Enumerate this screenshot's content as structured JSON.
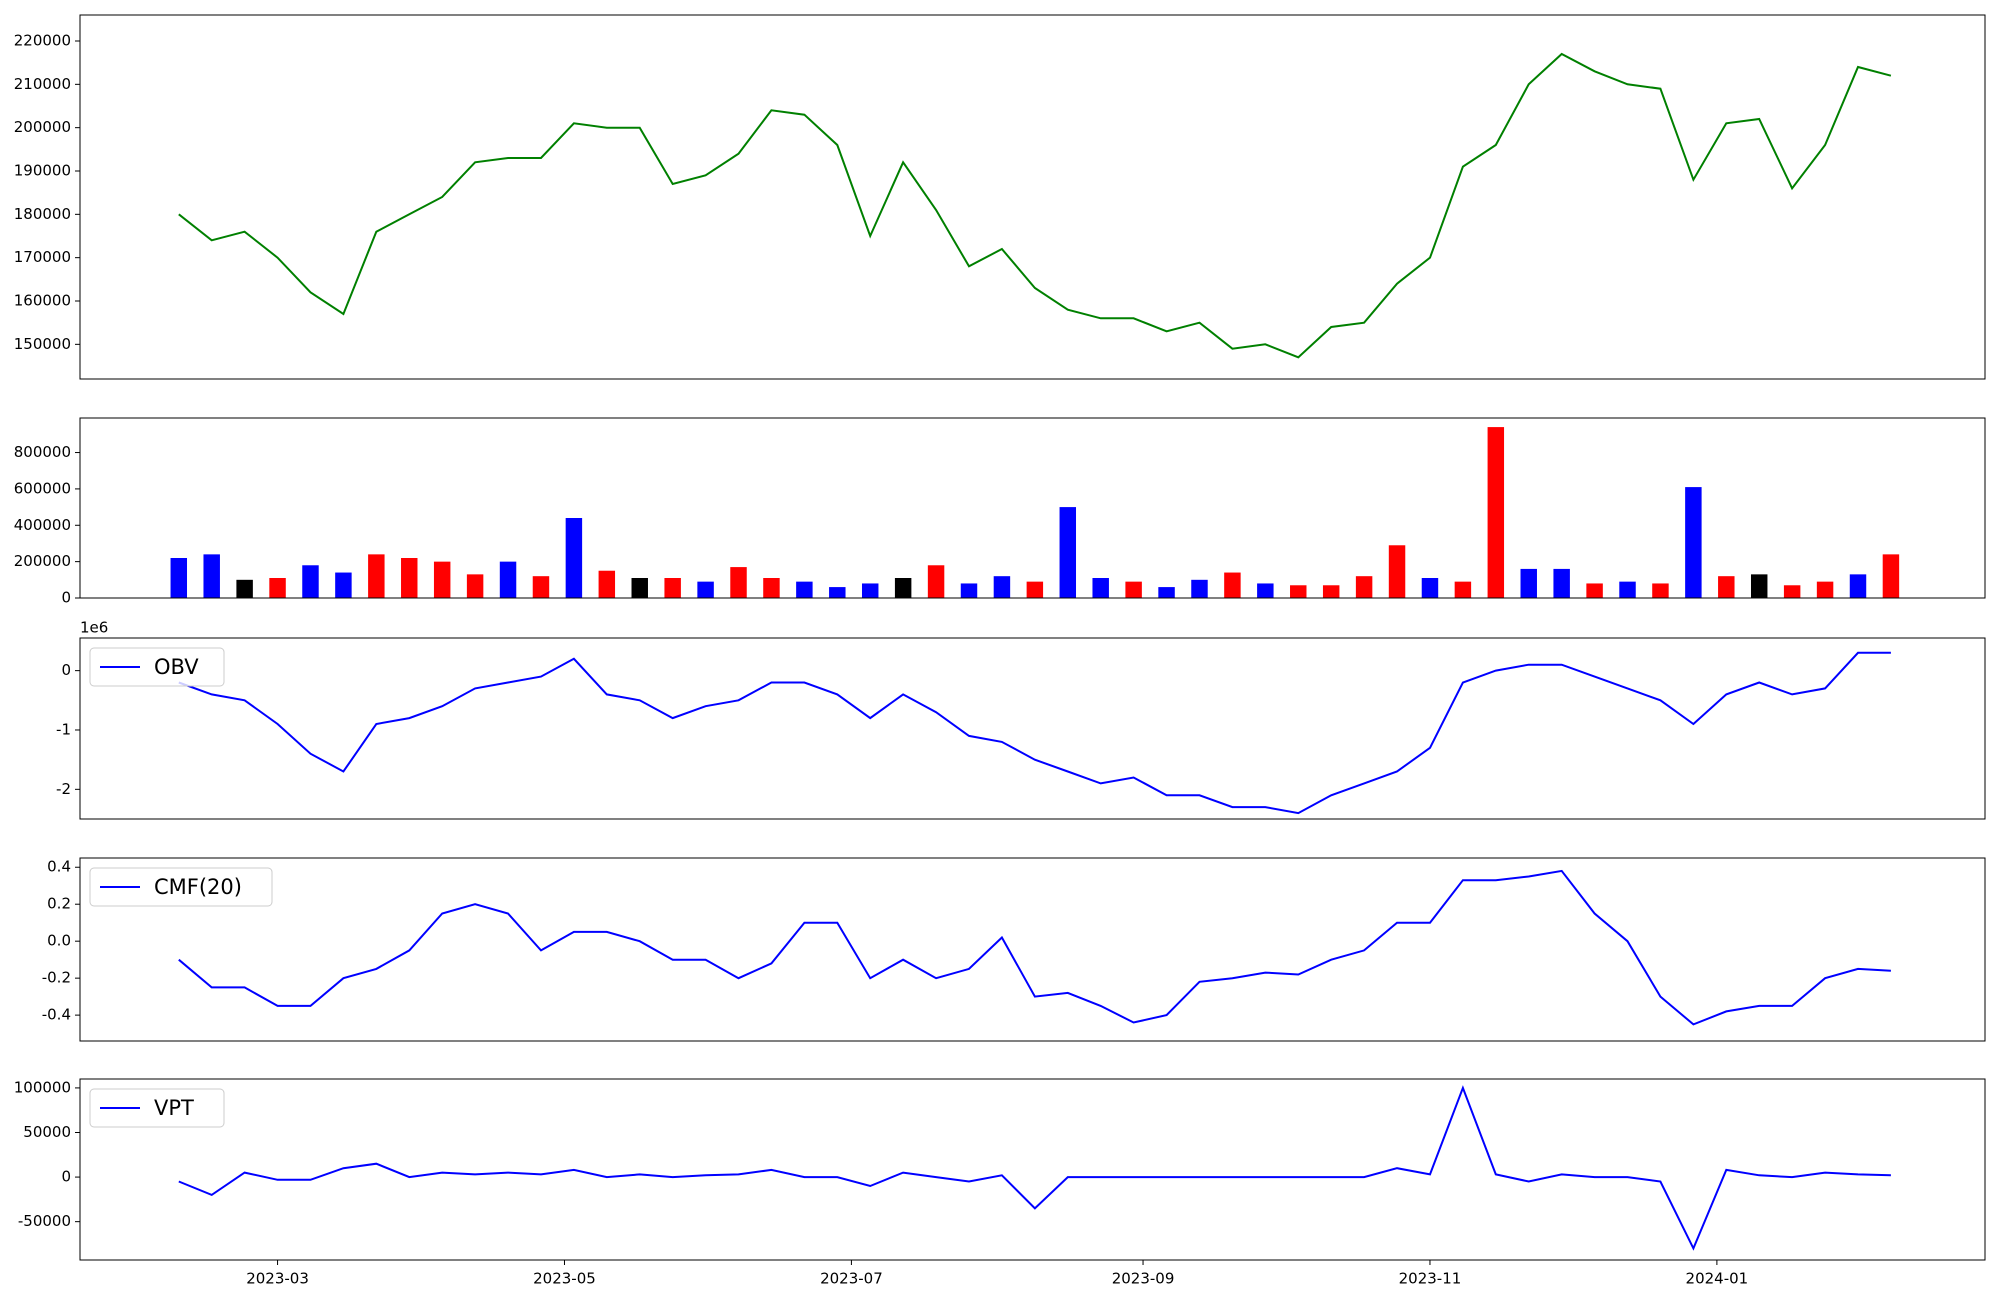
{
  "chart_data": [
    {
      "type": "line",
      "color": "#008000",
      "x": [
        "2023-02-08",
        "2023-02-15",
        "2023-02-22",
        "2023-03-01",
        "2023-03-08",
        "2023-03-15",
        "2023-03-22",
        "2023-03-29",
        "2023-04-05",
        "2023-04-12",
        "2023-04-19",
        "2023-04-26",
        "2023-05-03",
        "2023-05-10",
        "2023-05-17",
        "2023-05-24",
        "2023-05-31",
        "2023-06-07",
        "2023-06-14",
        "2023-06-21",
        "2023-06-28",
        "2023-07-05",
        "2023-07-12",
        "2023-07-19",
        "2023-07-26",
        "2023-08-02",
        "2023-08-09",
        "2023-08-16",
        "2023-08-23",
        "2023-08-30",
        "2023-09-06",
        "2023-09-13",
        "2023-09-20",
        "2023-09-27",
        "2023-10-04",
        "2023-10-11",
        "2023-10-18",
        "2023-10-25",
        "2023-11-01",
        "2023-11-08",
        "2023-11-15",
        "2023-11-22",
        "2023-11-29",
        "2023-12-06",
        "2023-12-13",
        "2023-12-20",
        "2023-12-27",
        "2024-01-03",
        "2024-01-10",
        "2024-01-17",
        "2024-01-24",
        "2024-01-31",
        "2024-02-07"
      ],
      "values": [
        180000,
        174000,
        176000,
        170000,
        162000,
        157000,
        176000,
        180000,
        184000,
        192000,
        193000,
        193000,
        201000,
        200000,
        200000,
        187000,
        189000,
        194000,
        204000,
        203000,
        196000,
        175000,
        192000,
        181000,
        168000,
        172000,
        163000,
        158000,
        156000,
        156000,
        153000,
        155000,
        149000,
        150000,
        147000,
        154000,
        155000,
        164000,
        170000,
        191000,
        196000,
        210000,
        217000,
        213000,
        210000,
        209000,
        188000,
        201000,
        202000,
        186000,
        196000,
        214000,
        212000
      ],
      "xlim": [
        "2023-01-18",
        "2024-02-27"
      ],
      "ylim": [
        142000,
        226000
      ],
      "yticks": [
        150000,
        160000,
        170000,
        180000,
        190000,
        200000,
        210000,
        220000
      ]
    },
    {
      "type": "bar",
      "x": [
        "2023-02-08",
        "2023-02-15",
        "2023-02-22",
        "2023-03-01",
        "2023-03-08",
        "2023-03-15",
        "2023-03-22",
        "2023-03-29",
        "2023-04-05",
        "2023-04-12",
        "2023-04-19",
        "2023-04-26",
        "2023-05-03",
        "2023-05-10",
        "2023-05-17",
        "2023-05-24",
        "2023-05-31",
        "2023-06-07",
        "2023-06-14",
        "2023-06-21",
        "2023-06-28",
        "2023-07-05",
        "2023-07-12",
        "2023-07-19",
        "2023-07-26",
        "2023-08-02",
        "2023-08-09",
        "2023-08-16",
        "2023-08-23",
        "2023-08-30",
        "2023-09-06",
        "2023-09-13",
        "2023-09-20",
        "2023-09-27",
        "2023-10-04",
        "2023-10-11",
        "2023-10-18",
        "2023-10-25",
        "2023-11-01",
        "2023-11-08",
        "2023-11-15",
        "2023-11-22",
        "2023-11-29",
        "2023-12-06",
        "2023-12-13",
        "2023-12-20",
        "2023-12-27",
        "2024-01-03",
        "2024-01-10",
        "2024-01-17",
        "2024-01-24",
        "2024-01-31",
        "2024-02-07"
      ],
      "values": [
        220000,
        240000,
        100000,
        110000,
        180000,
        140000,
        240000,
        220000,
        200000,
        130000,
        200000,
        120000,
        440000,
        150000,
        110000,
        110000,
        90000,
        170000,
        110000,
        90000,
        60000,
        80000,
        110000,
        180000,
        80000,
        120000,
        90000,
        500000,
        110000,
        90000,
        60000,
        100000,
        140000,
        80000,
        70000,
        70000,
        120000,
        290000,
        110000,
        90000,
        940000,
        160000,
        160000,
        80000,
        90000,
        80000,
        610000,
        120000,
        130000,
        70000,
        90000,
        130000,
        240000
      ],
      "colors": [
        "blue",
        "blue",
        "black",
        "red",
        "blue",
        "blue",
        "red",
        "red",
        "red",
        "red",
        "blue",
        "red",
        "blue",
        "red",
        "black",
        "red",
        "blue",
        "red",
        "red",
        "blue",
        "blue",
        "blue",
        "black",
        "red",
        "blue",
        "blue",
        "red",
        "blue",
        "blue",
        "red",
        "blue",
        "blue",
        "red",
        "blue",
        "red",
        "red",
        "red",
        "red",
        "blue",
        "red",
        "red",
        "blue",
        "blue",
        "red",
        "blue",
        "red",
        "blue",
        "red",
        "black",
        "red",
        "red",
        "blue",
        "red"
      ],
      "xlim": [
        "2023-01-18",
        "2024-02-27"
      ],
      "ylim": [
        0,
        990000
      ],
      "yticks": [
        0,
        200000,
        400000,
        600000,
        800000
      ]
    },
    {
      "type": "line",
      "offset_label": "1e6",
      "legend": "upper left",
      "x": [
        "2023-02-08",
        "2023-02-15",
        "2023-02-22",
        "2023-03-01",
        "2023-03-08",
        "2023-03-15",
        "2023-03-22",
        "2023-03-29",
        "2023-04-05",
        "2023-04-12",
        "2023-04-19",
        "2023-04-26",
        "2023-05-03",
        "2023-05-10",
        "2023-05-17",
        "2023-05-24",
        "2023-05-31",
        "2023-06-07",
        "2023-06-14",
        "2023-06-21",
        "2023-06-28",
        "2023-07-05",
        "2023-07-12",
        "2023-07-19",
        "2023-07-26",
        "2023-08-02",
        "2023-08-09",
        "2023-08-16",
        "2023-08-23",
        "2023-08-30",
        "2023-09-06",
        "2023-09-13",
        "2023-09-20",
        "2023-09-27",
        "2023-10-04",
        "2023-10-11",
        "2023-10-18",
        "2023-10-25",
        "2023-11-01",
        "2023-11-08",
        "2023-11-15",
        "2023-11-22",
        "2023-11-29",
        "2023-12-06",
        "2023-12-13",
        "2023-12-20",
        "2023-12-27",
        "2024-01-03",
        "2024-01-10",
        "2024-01-17",
        "2024-01-24",
        "2024-01-31",
        "2024-02-07"
      ],
      "series": [
        {
          "name": "OBV",
          "color": "#0000ff",
          "values": [
            -0.2,
            -0.4,
            -0.5,
            -0.9,
            -1.4,
            -1.7,
            -0.9,
            -0.8,
            -0.6,
            -0.3,
            -0.2,
            -0.1,
            0.2,
            -0.4,
            -0.5,
            -0.8,
            -0.6,
            -0.5,
            -0.2,
            -0.2,
            -0.4,
            -0.8,
            -0.4,
            -0.7,
            -1.1,
            -1.2,
            -1.5,
            -1.7,
            -1.9,
            -1.8,
            -2.1,
            -2.1,
            -2.3,
            -2.3,
            -2.4,
            -2.1,
            -1.9,
            -1.7,
            -1.3,
            -0.2,
            0.0,
            0.1,
            0.1,
            -0.1,
            -0.3,
            -0.5,
            -0.9,
            -0.4,
            -0.2,
            -0.4,
            -0.3,
            0.3,
            0.3
          ]
        }
      ],
      "xlim": [
        "2023-01-18",
        "2024-02-27"
      ],
      "ylim": [
        -2.5,
        0.55
      ],
      "yticks": [
        -2,
        -1,
        0
      ]
    },
    {
      "type": "line",
      "legend": "upper left",
      "x": [
        "2023-02-08",
        "2023-02-15",
        "2023-02-22",
        "2023-03-01",
        "2023-03-08",
        "2023-03-15",
        "2023-03-22",
        "2023-03-29",
        "2023-04-05",
        "2023-04-12",
        "2023-04-19",
        "2023-04-26",
        "2023-05-03",
        "2023-05-10",
        "2023-05-17",
        "2023-05-24",
        "2023-05-31",
        "2023-06-07",
        "2023-06-14",
        "2023-06-21",
        "2023-06-28",
        "2023-07-05",
        "2023-07-12",
        "2023-07-19",
        "2023-07-26",
        "2023-08-02",
        "2023-08-09",
        "2023-08-16",
        "2023-08-23",
        "2023-08-30",
        "2023-09-06",
        "2023-09-13",
        "2023-09-20",
        "2023-09-27",
        "2023-10-04",
        "2023-10-11",
        "2023-10-18",
        "2023-10-25",
        "2023-11-01",
        "2023-11-08",
        "2023-11-15",
        "2023-11-22",
        "2023-11-29",
        "2023-12-06",
        "2023-12-13",
        "2023-12-20",
        "2023-12-27",
        "2024-01-03",
        "2024-01-10",
        "2024-01-17",
        "2024-01-24",
        "2024-01-31",
        "2024-02-07"
      ],
      "series": [
        {
          "name": "CMF(20)",
          "color": "#0000ff",
          "values": [
            -0.1,
            -0.25,
            -0.25,
            -0.35,
            -0.35,
            -0.2,
            -0.15,
            -0.05,
            0.15,
            0.2,
            0.15,
            -0.05,
            0.05,
            0.05,
            0.0,
            -0.1,
            -0.1,
            -0.2,
            -0.12,
            0.1,
            0.1,
            -0.2,
            -0.1,
            -0.2,
            -0.15,
            0.02,
            -0.3,
            -0.28,
            -0.35,
            -0.44,
            -0.4,
            -0.22,
            -0.2,
            -0.17,
            -0.18,
            -0.1,
            -0.05,
            0.1,
            0.1,
            0.33,
            0.33,
            0.35,
            0.38,
            0.15,
            0.0,
            -0.3,
            -0.45,
            -0.38,
            -0.35,
            -0.35,
            -0.2,
            -0.15,
            -0.16
          ]
        }
      ],
      "xlim": [
        "2023-01-18",
        "2024-02-27"
      ],
      "ylim": [
        -0.54,
        0.45
      ],
      "yticks": [
        -0.4,
        -0.2,
        {
          "value": 0,
          "label": "0.0"
        },
        0.2,
        0.4
      ]
    },
    {
      "type": "line",
      "legend": "upper left",
      "x": [
        "2023-02-08",
        "2023-02-15",
        "2023-02-22",
        "2023-03-01",
        "2023-03-08",
        "2023-03-15",
        "2023-03-22",
        "2023-03-29",
        "2023-04-05",
        "2023-04-12",
        "2023-04-19",
        "2023-04-26",
        "2023-05-03",
        "2023-05-10",
        "2023-05-17",
        "2023-05-24",
        "2023-05-31",
        "2023-06-07",
        "2023-06-14",
        "2023-06-21",
        "2023-06-28",
        "2023-07-05",
        "2023-07-12",
        "2023-07-19",
        "2023-07-26",
        "2023-08-02",
        "2023-08-09",
        "2023-08-16",
        "2023-08-23",
        "2023-08-30",
        "2023-09-06",
        "2023-09-13",
        "2023-09-20",
        "2023-09-27",
        "2023-10-04",
        "2023-10-11",
        "2023-10-18",
        "2023-10-25",
        "2023-11-01",
        "2023-11-08",
        "2023-11-15",
        "2023-11-22",
        "2023-11-29",
        "2023-12-06",
        "2023-12-13",
        "2023-12-20",
        "2023-12-27",
        "2024-01-03",
        "2024-01-10",
        "2024-01-17",
        "2024-01-24",
        "2024-01-31",
        "2024-02-07"
      ],
      "series": [
        {
          "name": "VPT",
          "color": "#0000ff",
          "values": [
            -5000,
            -20000,
            5000,
            -3000,
            -3000,
            10000,
            15000,
            0,
            5000,
            3000,
            5000,
            3000,
            8000,
            0,
            3000,
            0,
            2000,
            3000,
            8000,
            0,
            0,
            -10000,
            5000,
            0,
            -5000,
            2000,
            -35000,
            0,
            0,
            0,
            0,
            0,
            0,
            0,
            0,
            0,
            0,
            10000,
            3000,
            100000,
            3000,
            -5000,
            3000,
            0,
            0,
            -5000,
            -80000,
            8000,
            2000,
            0,
            5000,
            3000,
            2000
          ]
        }
      ],
      "xlim": [
        "2023-01-18",
        "2024-02-27"
      ],
      "ylim": [
        -93000,
        110000
      ],
      "yticks": [
        -50000,
        0,
        50000,
        100000
      ],
      "xticks": [
        "2023-03",
        "2023-05",
        "2023-07",
        "2023-09",
        "2023-11",
        "2024-01"
      ]
    }
  ]
}
